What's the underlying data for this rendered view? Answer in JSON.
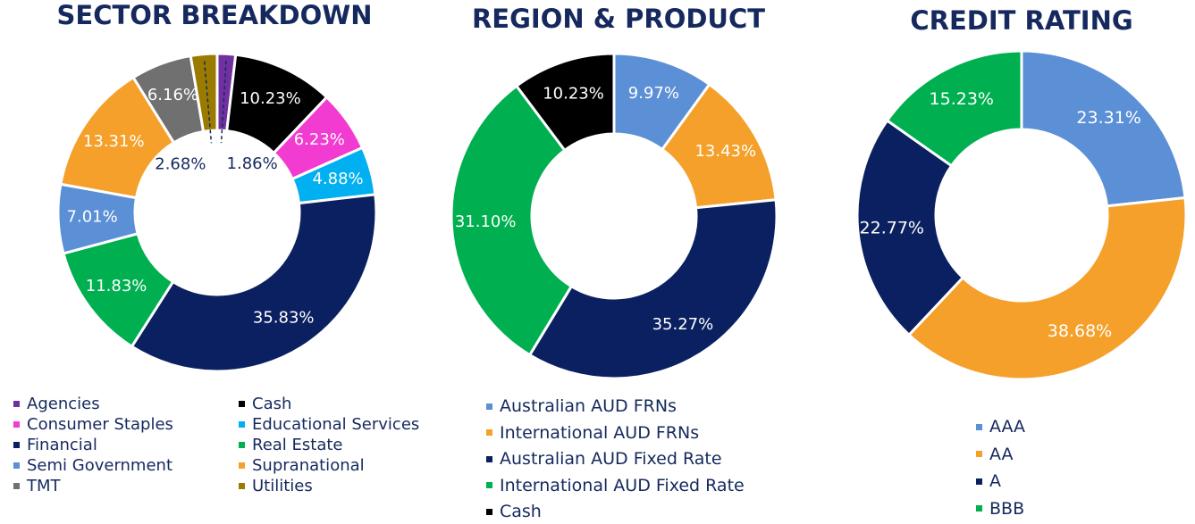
{
  "chart_data": [
    {
      "type": "pie",
      "title": "SECTOR BREAKDOWN",
      "categories": [
        "Agencies",
        "Cash",
        "Consumer Staples",
        "Educational Services",
        "Financial",
        "Real Estate",
        "Semi Government",
        "Supranational",
        "TMT",
        "Utilities"
      ],
      "values": [
        1.86,
        10.23,
        6.23,
        4.88,
        35.83,
        11.83,
        7.01,
        13.31,
        6.16,
        2.68
      ],
      "labels": [
        "1.86%",
        "10.23%",
        "6.23%",
        "4.88%",
        "35.83%",
        "11.83%",
        "7.01%",
        "13.31%",
        "6.16%",
        "2.68%"
      ],
      "colors": [
        "#7030a0",
        "#000000",
        "#f23bd0",
        "#00b0f0",
        "#0b2060",
        "#00b050",
        "#5b8fd6",
        "#f5a02a",
        "#707070",
        "#9a7b00"
      ],
      "legend_position": "bottom",
      "legend_columns": 2
    },
    {
      "type": "pie",
      "title": "REGION & PRODUCT",
      "categories": [
        "Australian AUD FRNs",
        "International AUD FRNs",
        "Australian AUD Fixed Rate",
        "International AUD Fixed Rate",
        "Cash"
      ],
      "values": [
        9.97,
        13.43,
        35.27,
        31.1,
        10.23
      ],
      "labels": [
        "9.97%",
        "13.43%",
        "35.27%",
        "31.10%",
        "10.23%"
      ],
      "colors": [
        "#5b8fd6",
        "#f5a02a",
        "#0b2060",
        "#00b050",
        "#000000"
      ],
      "legend_position": "bottom",
      "legend_columns": 1
    },
    {
      "type": "pie",
      "title": "CREDIT RATING",
      "categories": [
        "AAA",
        "AA",
        "A",
        "BBB"
      ],
      "values": [
        23.31,
        38.68,
        22.77,
        15.23
      ],
      "labels": [
        "23.31%",
        "38.68%",
        "22.77%",
        "15.23%"
      ],
      "colors": [
        "#5b8fd6",
        "#f5a02a",
        "#0b2060",
        "#00b050"
      ],
      "legend_position": "bottom",
      "legend_columns": 1
    }
  ]
}
